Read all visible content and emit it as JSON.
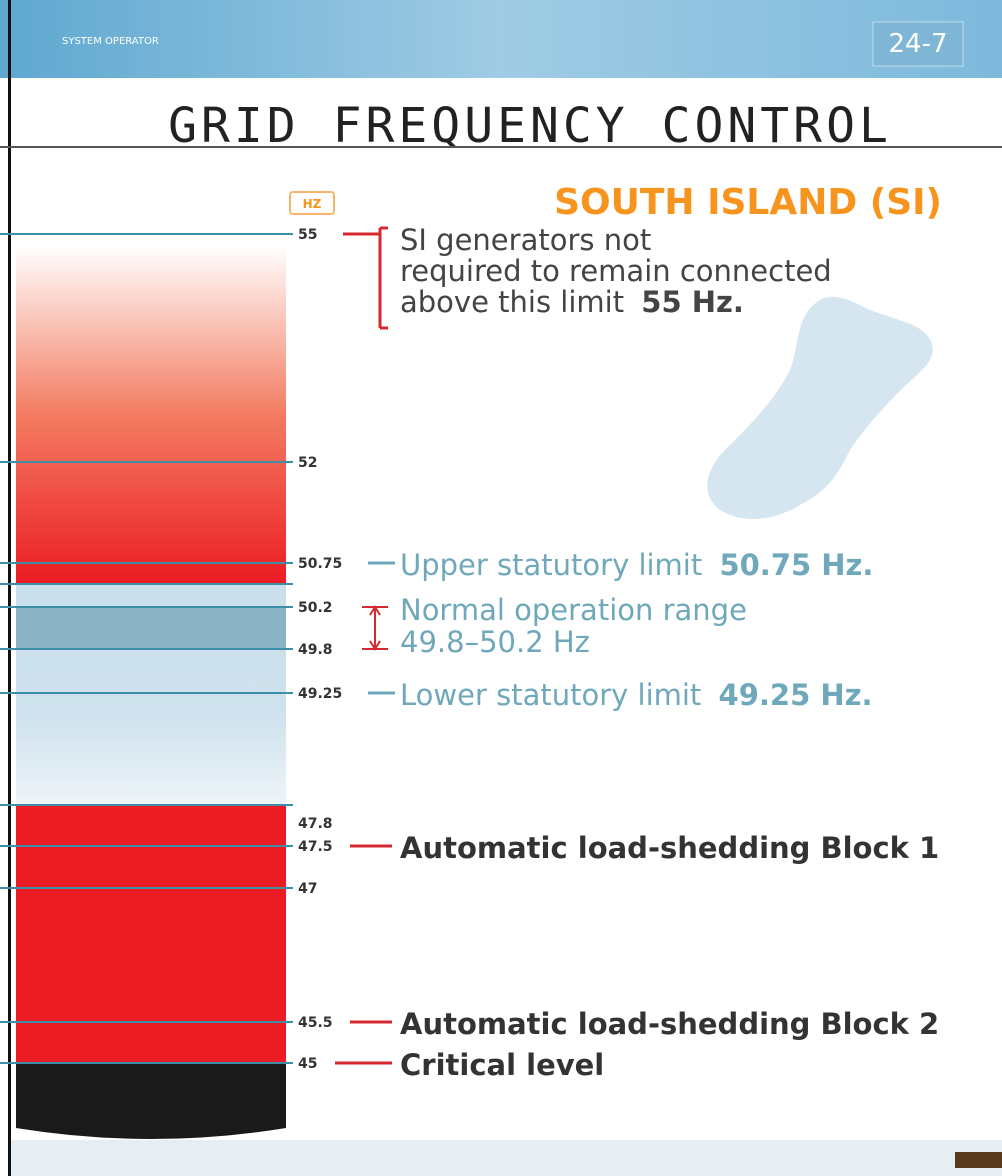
{
  "header": {
    "org": "SYSTEM OPERATOR",
    "badge": "24-7"
  },
  "title": "GRID FREQUENCY CONTROL",
  "subtitle": "SOUTH ISLAND (SI)",
  "unit": "HZ",
  "scale": [
    "55",
    "52",
    "50.75",
    "50.2",
    "49.8",
    "49.25",
    "47.8",
    "47.5",
    "47",
    "45.5",
    "45"
  ],
  "annotations": {
    "generators": {
      "lines": [
        "SI generators not",
        "required to remain connected",
        "above this limit"
      ],
      "value": "55 Hz."
    },
    "upper": {
      "text": "Upper statutory limit",
      "value": "50.75 Hz."
    },
    "normal": {
      "lines": [
        "Normal operation range",
        "49.8–50.2 Hz"
      ]
    },
    "lower": {
      "text": "Lower statutory limit",
      "value": "49.25 Hz."
    },
    "block1": "Automatic load-shedding Block 1",
    "block2": "Automatic load-shedding Block 2",
    "critical": "Critical level"
  }
}
